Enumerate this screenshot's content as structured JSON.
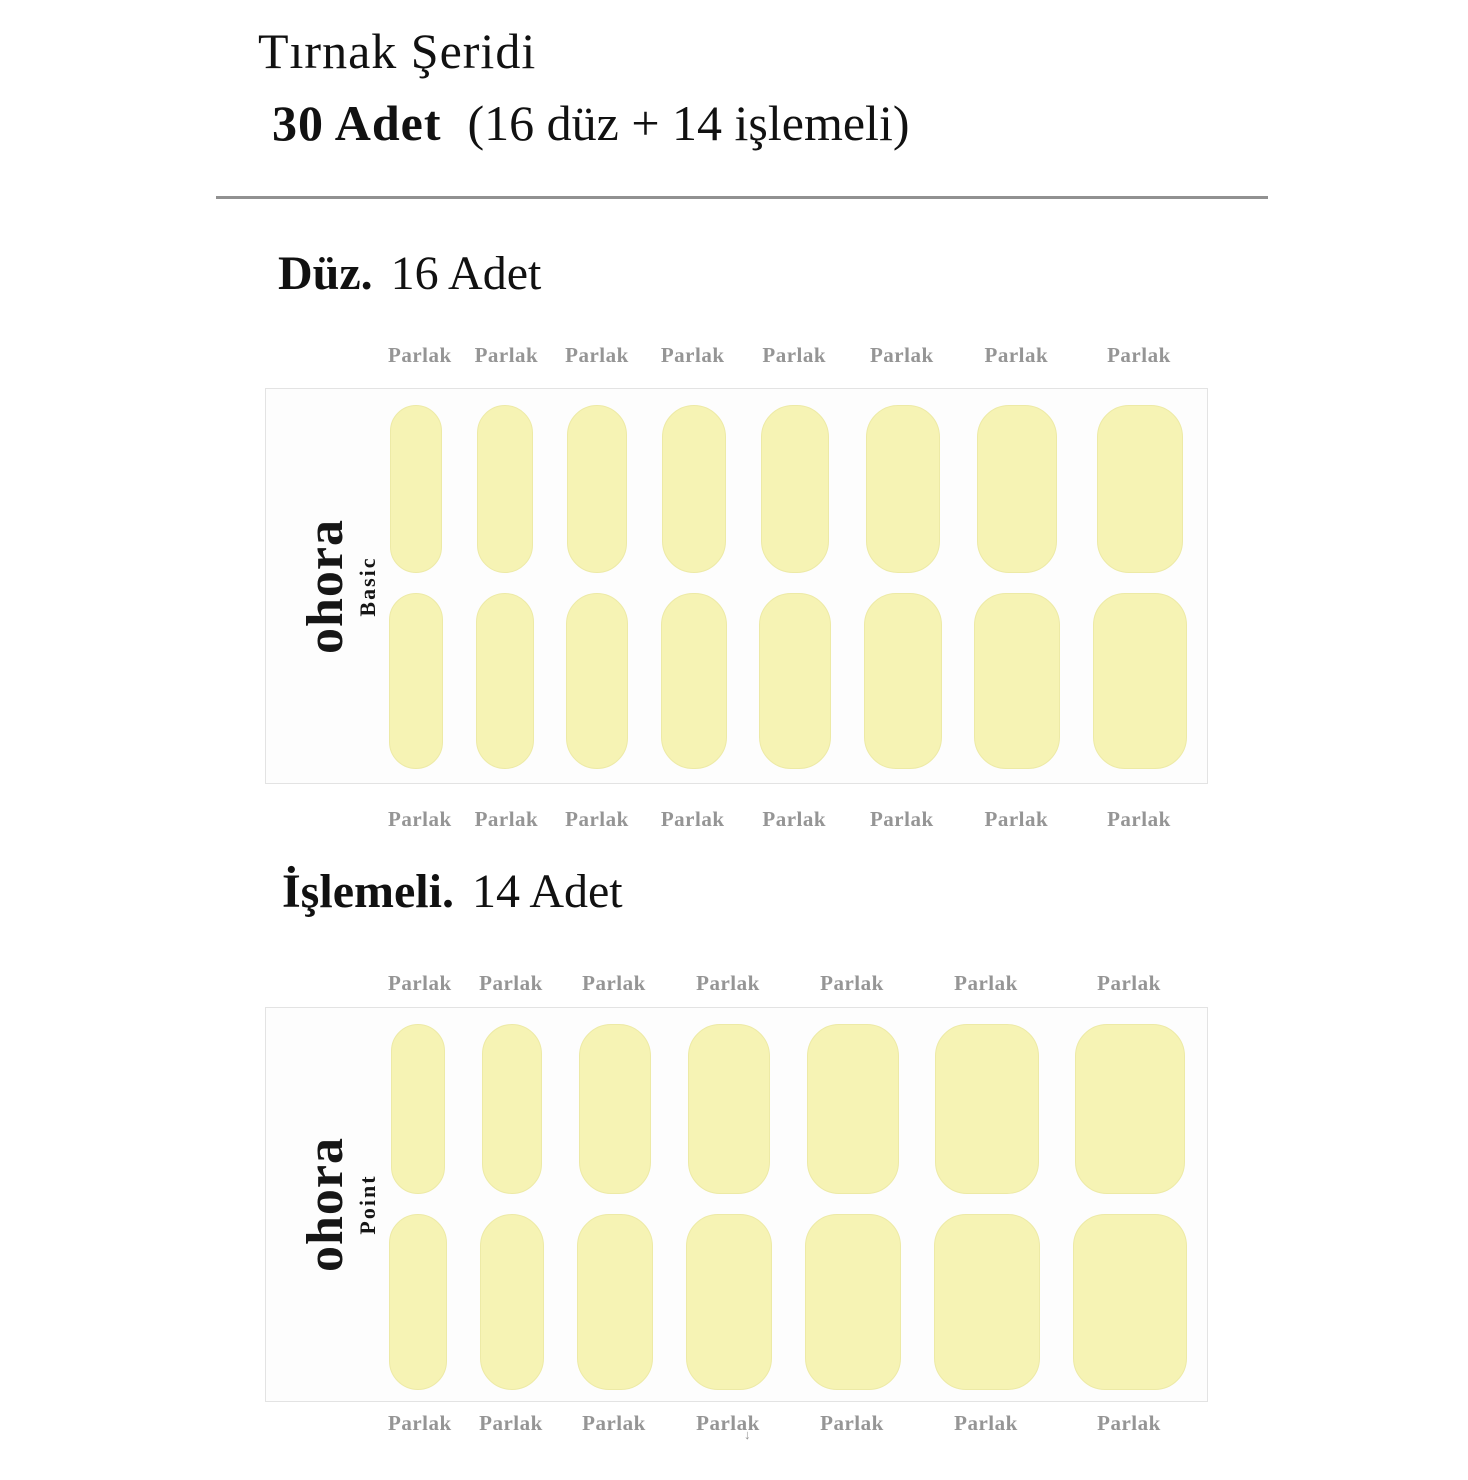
{
  "header": {
    "title": "Tırnak Şeridi",
    "count_bold": "30 Adet",
    "count_detail": "(16 düz + 14 işlemeli)"
  },
  "sections": [
    {
      "heading_type": "Düz.",
      "heading_count": "16 Adet",
      "brand": "ohora",
      "line": "Basic",
      "finish": "Parlak",
      "columns": 8,
      "nail_count": 16
    },
    {
      "heading_type": "İşlemeli.",
      "heading_count": "14 Adet",
      "brand": "ohora",
      "line": "Point",
      "finish": "Parlak",
      "columns": 7,
      "nail_count": 14
    }
  ],
  "colors": {
    "nail": "#f6f3b4",
    "nail_edge": "#edeaa6",
    "label": "#959595",
    "divider": "#919191",
    "text": "#111111",
    "card_bg": "#fdfdfd",
    "card_border": "#e3e3e3"
  }
}
